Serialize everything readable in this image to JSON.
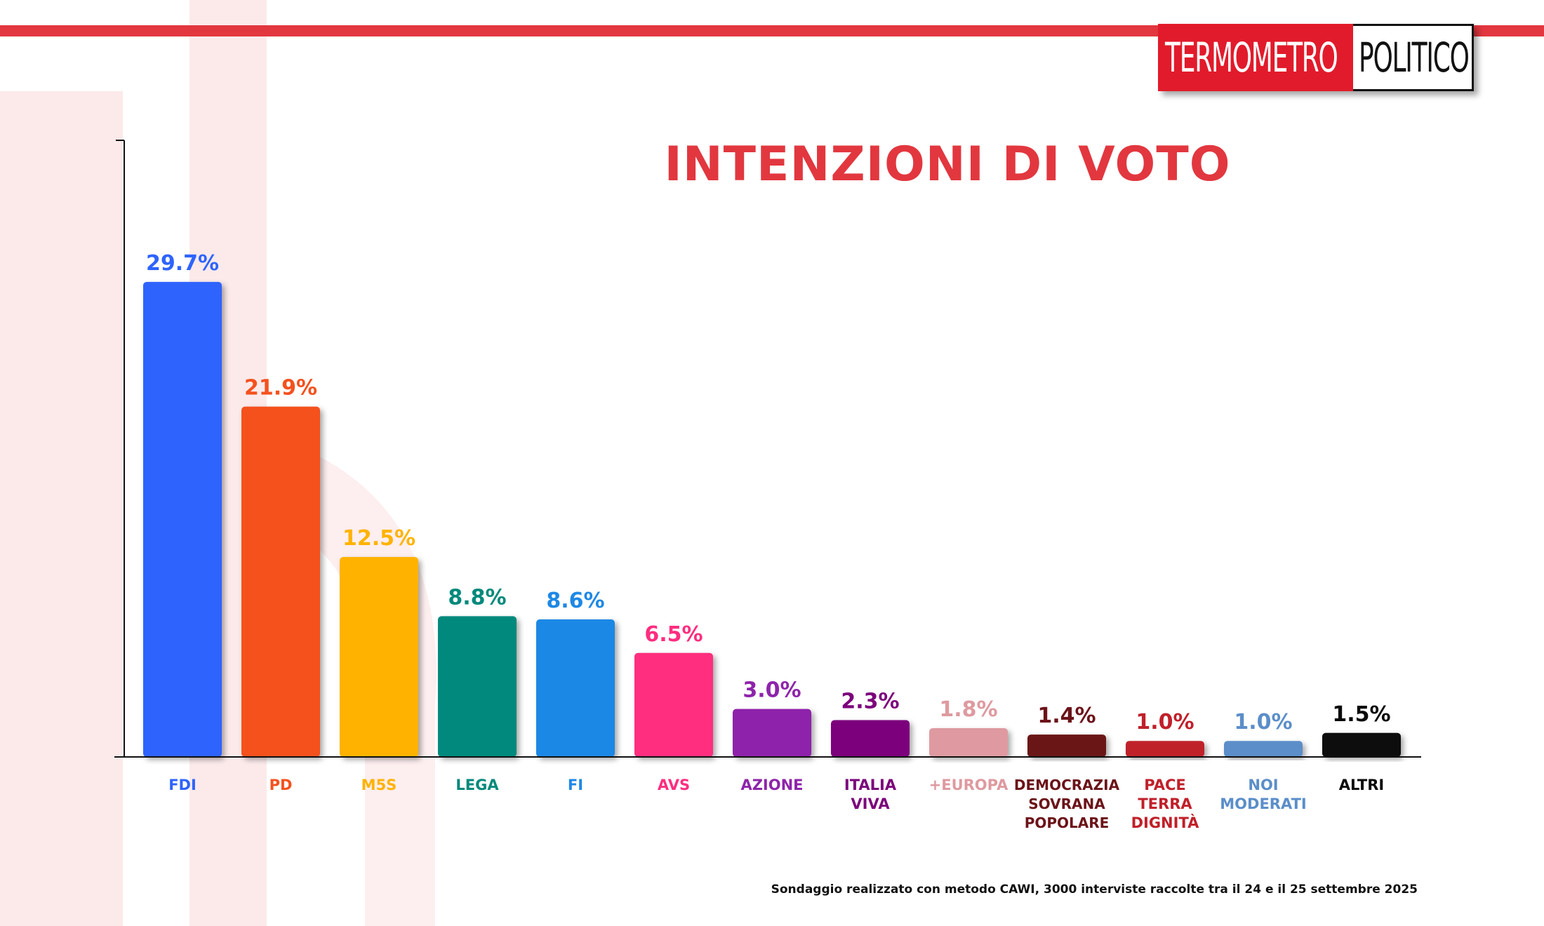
{
  "brand": {
    "logo_left": "TERMOMETRO",
    "logo_right": "POLITICO",
    "accent": "#e2373f"
  },
  "chart_data": {
    "type": "bar",
    "title": "INTENZIONI DI VOTO",
    "ylim": [
      0,
      32
    ],
    "grid": false,
    "categories": [
      "FDI",
      "PD",
      "M5S",
      "LEGA",
      "FI",
      "AVS",
      "AZIONE",
      "ITALIA VIVA",
      "+EUROPA",
      "DEMOCRAZIA SOVRANA POPOLARE",
      "PACE TERRA DIGNITÀ",
      "NOI MODERATI",
      "ALTRI"
    ],
    "category_lines": [
      [
        "FDI"
      ],
      [
        "PD"
      ],
      [
        "M5S"
      ],
      [
        "LEGA"
      ],
      [
        "FI"
      ],
      [
        "AVS"
      ],
      [
        "AZIONE"
      ],
      [
        "ITALIA",
        "VIVA"
      ],
      [
        "+EUROPA"
      ],
      [
        "DEMOCRAZIA",
        "SOVRANA",
        "POPOLARE"
      ],
      [
        "PACE",
        "TERRA",
        "DIGNITÀ"
      ],
      [
        "NOI",
        "MODERATI"
      ],
      [
        "ALTRI"
      ]
    ],
    "values": [
      29.7,
      21.9,
      12.5,
      8.8,
      8.6,
      6.5,
      3.0,
      2.3,
      1.8,
      1.4,
      1.0,
      1.0,
      1.5
    ],
    "value_labels": [
      "29.7%",
      "21.9%",
      "12.5%",
      "8.8%",
      "8.6%",
      "6.5%",
      "3.0%",
      "2.3%",
      "1.8%",
      "1.4%",
      "1.0%",
      "1.0%",
      "1.5%"
    ],
    "colors": [
      "#2e64fe",
      "#f4511e",
      "#ffb300",
      "#00897b",
      "#1e88e5",
      "#ff2d7f",
      "#8e24aa",
      "#7b007b",
      "#de9aa0",
      "#6b1319",
      "#c0202a",
      "#5b8ec9",
      "#0a0a0a"
    ]
  },
  "footnote": "Sondaggio realizzato con metodo CAWI, 3000 interviste raccolte tra il 24 e il 25 settembre 2025"
}
